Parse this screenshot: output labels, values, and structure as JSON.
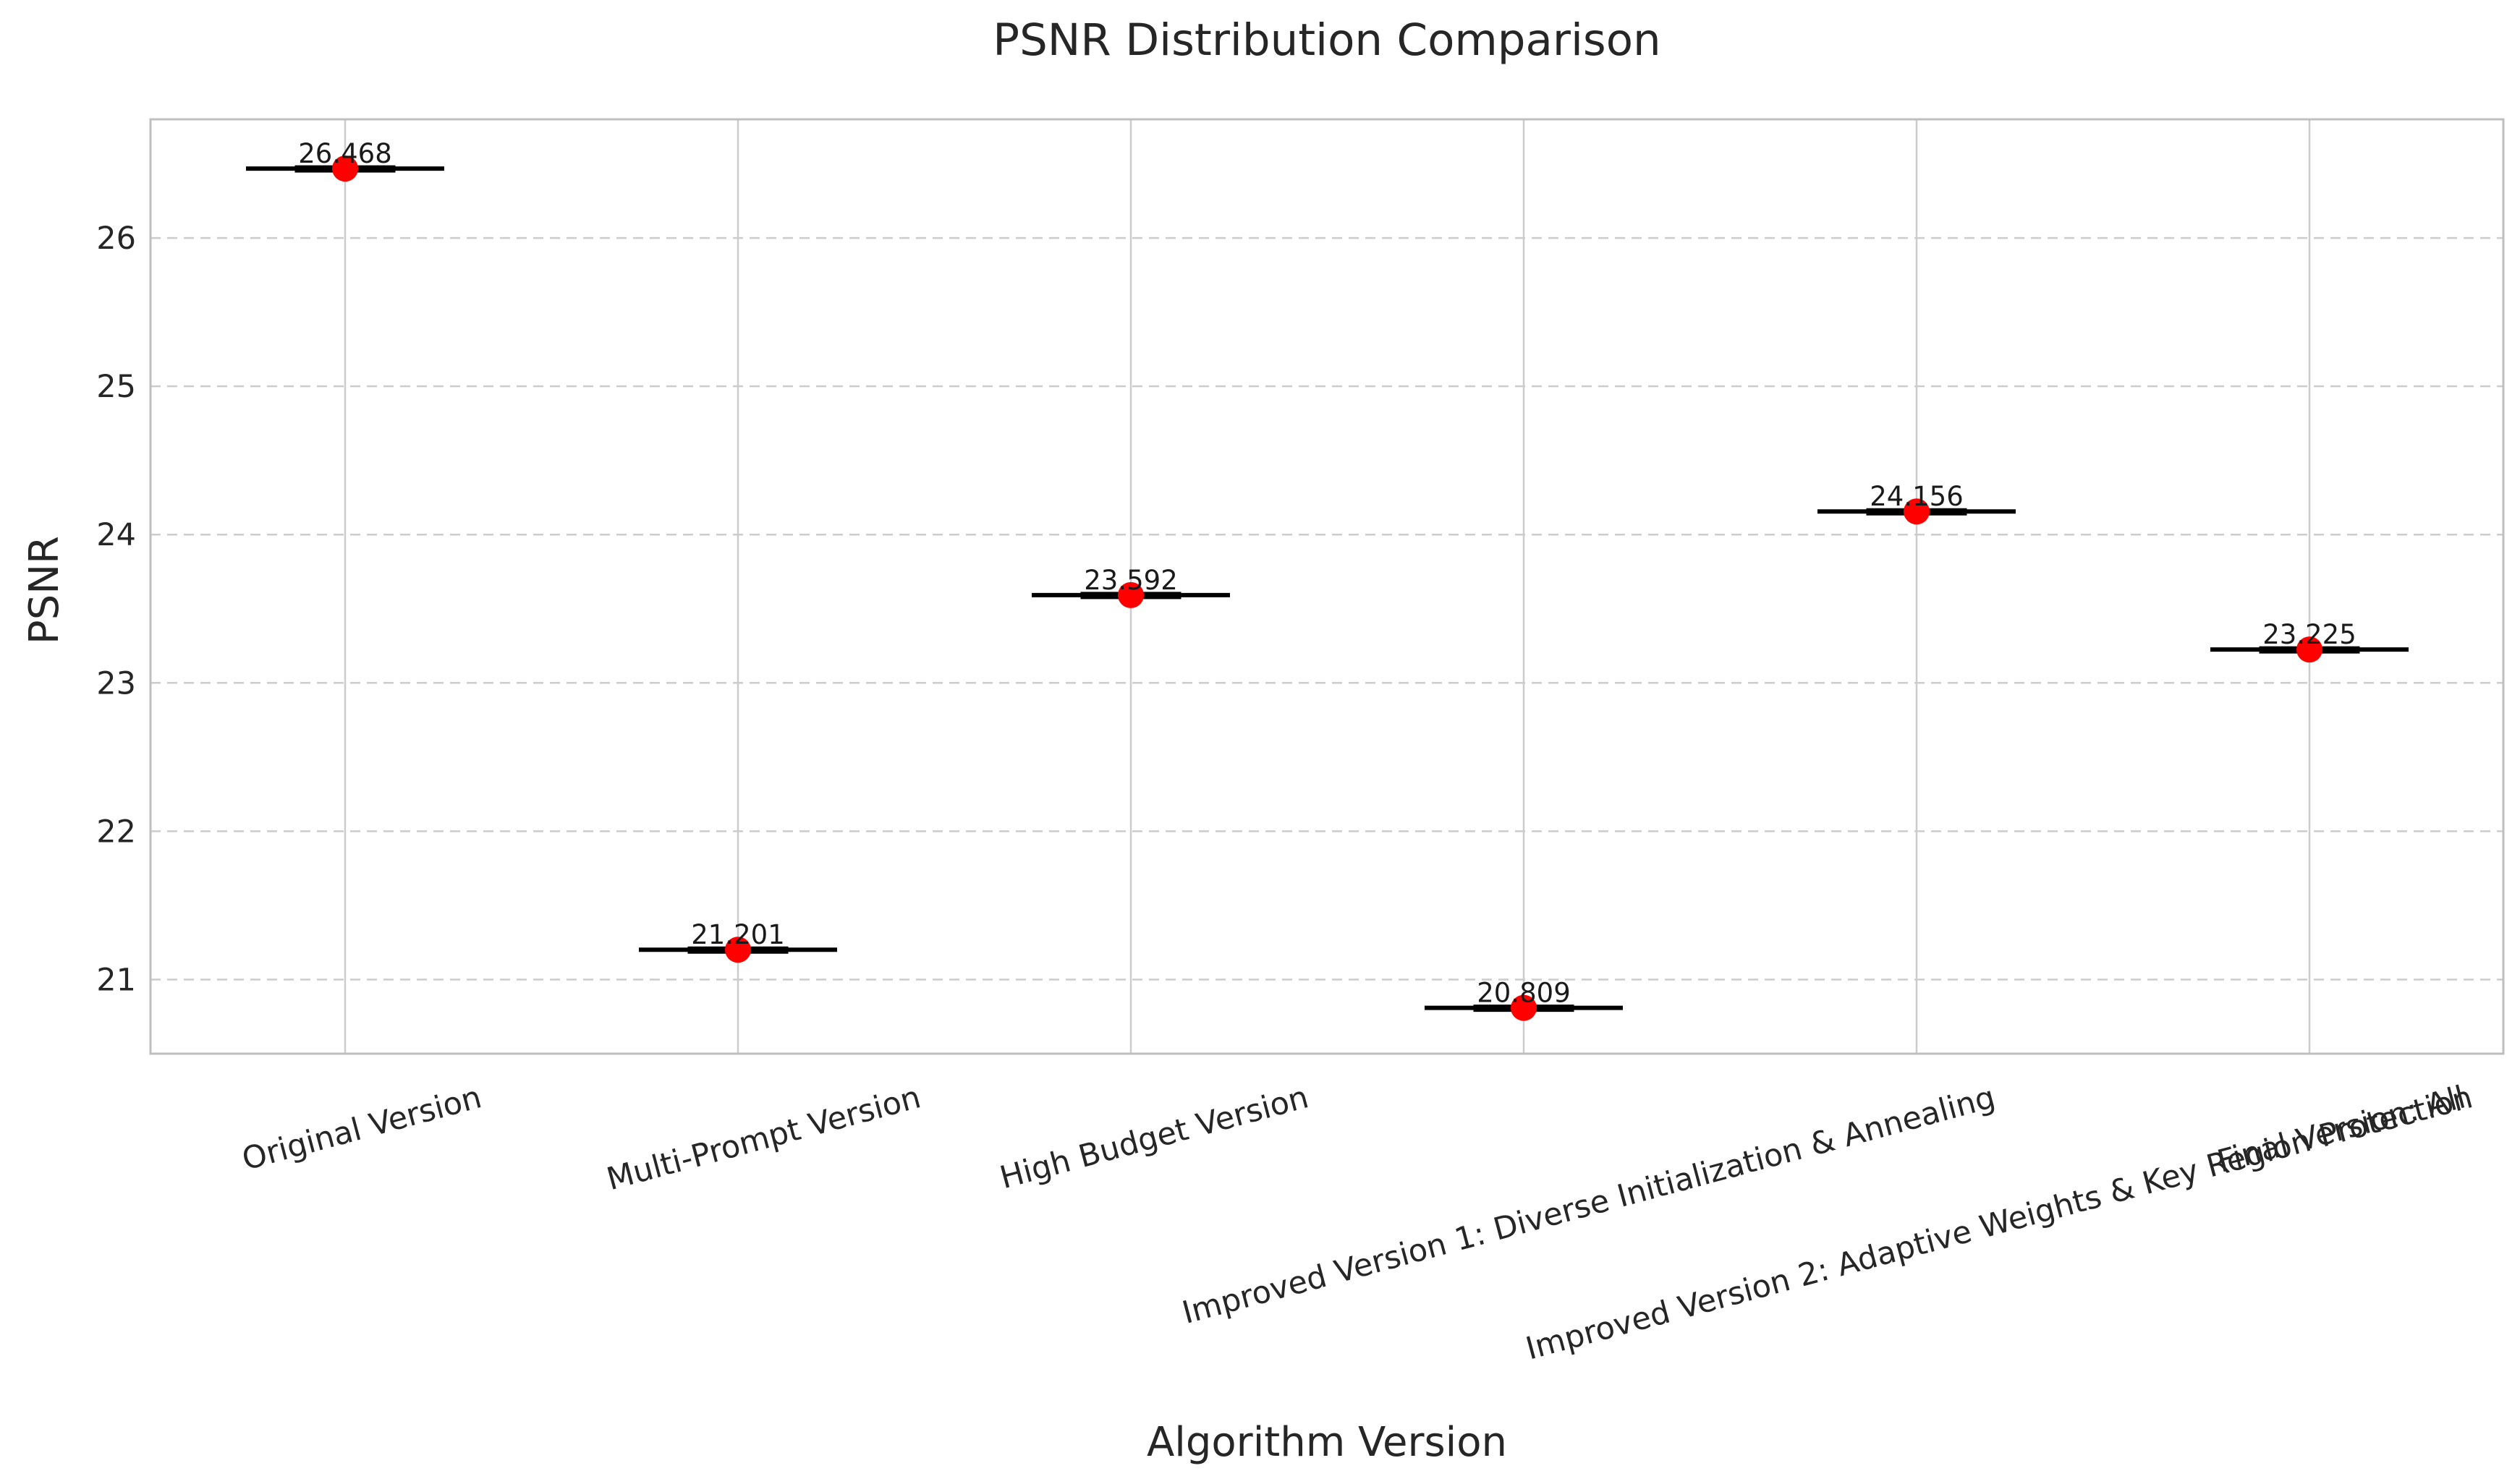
{
  "chart_data": {
    "type": "box",
    "title": "PSNR Distribution Comparison",
    "xlabel": "Algorithm Version",
    "ylabel": "PSNR",
    "categories": [
      "Original Version",
      "Multi-Prompt Version",
      "High Budget Version",
      "Improved Version 1: Diverse Initialization & Annealing",
      "Improved Version 2: Adaptive Weights & Key Region Protection",
      "Final Version: All"
    ],
    "values": [
      26.468,
      21.201,
      23.592,
      20.809,
      24.156,
      23.225
    ],
    "value_labels": [
      "26.468",
      "21.201",
      "23.592",
      "20.809",
      "24.156",
      "23.225"
    ],
    "ylim": [
      20.5,
      26.8
    ],
    "yticks": [
      21,
      22,
      23,
      24,
      25,
      26
    ],
    "grid": true,
    "colors": {
      "mean_marker": "#ff0000",
      "median_line": "#000000",
      "grid": "#cccccc",
      "axes": "#bfbfbf"
    }
  }
}
